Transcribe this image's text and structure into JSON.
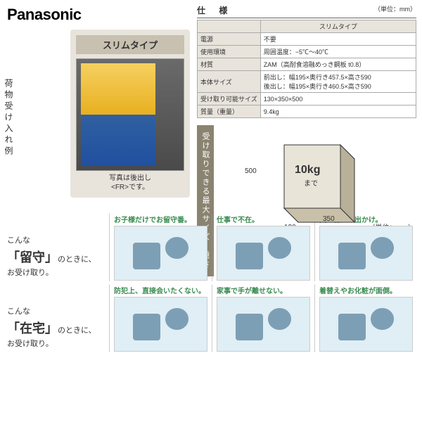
{
  "logo": "Panasonic",
  "product": {
    "side_label": "荷物受け入れ例",
    "title": "スリムタイプ",
    "caption_line1": "写真は後出し",
    "caption_line2": "<FR>です。"
  },
  "spec": {
    "header": "仕 様",
    "unit_text": "（単位：mm）",
    "column_header": "スリムタイプ",
    "rows": [
      {
        "label": "電源",
        "value": "不要"
      },
      {
        "label": "使用環境",
        "value": "周囲温度：−5℃〜40℃"
      },
      {
        "label": "材質",
        "value": "ZAM（高耐食溶融めっき鋼板 t0.8）"
      },
      {
        "label": "本体サイズ",
        "value": "前出し：幅195×奥行き457.5×高さ590\n後出し：幅195×奥行き460.5×高さ590"
      },
      {
        "label": "受け取り可能サイズ",
        "value": "130×350×500"
      },
      {
        "label": "質量（重量）",
        "value": "9.4kg"
      }
    ]
  },
  "size_box": {
    "label": "受け取りできる最大サイズ・重さ",
    "height": "500",
    "depth": "350",
    "width": "130",
    "weight": "10kg",
    "weight_suffix": "まで",
    "unit": "（単位：mm）",
    "colors": {
      "face": "#d6d0c0",
      "side": "#b8b098",
      "top": "#e8e4d8",
      "line": "#333"
    }
  },
  "sections": [
    {
      "prefix": "こんな",
      "word": "「留守」",
      "suffix1": "のときに、",
      "suffix2": "お受け取り。",
      "tiles": [
        {
          "label": "お子様だけでお留守番。"
        },
        {
          "label": "仕事で不在。"
        },
        {
          "label": "買い物にお出かけ。"
        }
      ]
    },
    {
      "prefix": "こんな",
      "word": "「在宅」",
      "suffix1": "のときに、",
      "suffix2": "お受け取り。",
      "tiles": [
        {
          "label": "防犯上、直接会いたくない。"
        },
        {
          "label": "家事で手が離せない。"
        },
        {
          "label": "着替えやお化粧が面倒。"
        }
      ]
    }
  ],
  "colors": {
    "accent": "#3a8a50",
    "beige": "#e8e4dc",
    "olive": "#8a8370"
  }
}
